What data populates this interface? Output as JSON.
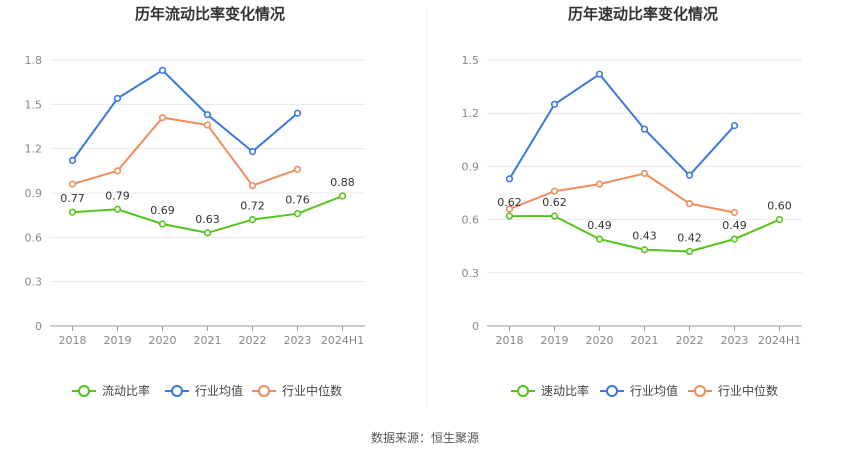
{
  "source_text": "数据来源：恒生聚源",
  "chart_data": [
    {
      "type": "line",
      "title": "历年流动比率变化情况",
      "categories": [
        "2018",
        "2019",
        "2020",
        "2021",
        "2022",
        "2023",
        "2024H1"
      ],
      "ylim": [
        0,
        1.8
      ],
      "yticks": [
        "0",
        "0.3",
        "0.6",
        "0.9",
        "1.2",
        "1.5",
        "1.8"
      ],
      "grid": true,
      "legend_position": "bottom",
      "series": [
        {
          "name": "流动比率",
          "color": "#52c41a",
          "values": [
            0.77,
            0.79,
            0.69,
            0.63,
            0.72,
            0.76,
            0.88
          ],
          "labels": [
            "0.77",
            "0.79",
            "0.69",
            "0.63",
            "0.72",
            "0.76",
            "0.88"
          ]
        },
        {
          "name": "行业均值",
          "color": "#3a78e0",
          "values": [
            1.12,
            1.54,
            1.73,
            1.43,
            1.18,
            1.44,
            null
          ]
        },
        {
          "name": "行业中位数",
          "color": "#f08c5a",
          "values": [
            0.96,
            1.05,
            1.41,
            1.36,
            0.95,
            1.06,
            null
          ]
        }
      ]
    },
    {
      "type": "line",
      "title": "历年速动比率变化情况",
      "categories": [
        "2018",
        "2019",
        "2020",
        "2021",
        "2022",
        "2023",
        "2024H1"
      ],
      "ylim": [
        0,
        1.5
      ],
      "yticks": [
        "0",
        "0.3",
        "0.6",
        "0.9",
        "1.2",
        "1.5"
      ],
      "grid": true,
      "legend_position": "bottom",
      "series": [
        {
          "name": "速动比率",
          "color": "#52c41a",
          "values": [
            0.62,
            0.62,
            0.49,
            0.43,
            0.42,
            0.49,
            0.6
          ],
          "labels": [
            "0.62",
            "0.62",
            "0.49",
            "0.43",
            "0.42",
            "0.49",
            "0.60"
          ]
        },
        {
          "name": "行业均值",
          "color": "#3a78e0",
          "values": [
            0.83,
            1.25,
            1.42,
            1.11,
            0.85,
            1.13,
            null
          ]
        },
        {
          "name": "行业中位数",
          "color": "#f08c5a",
          "values": [
            0.66,
            0.76,
            0.8,
            0.86,
            0.69,
            0.64,
            null
          ]
        }
      ]
    }
  ]
}
